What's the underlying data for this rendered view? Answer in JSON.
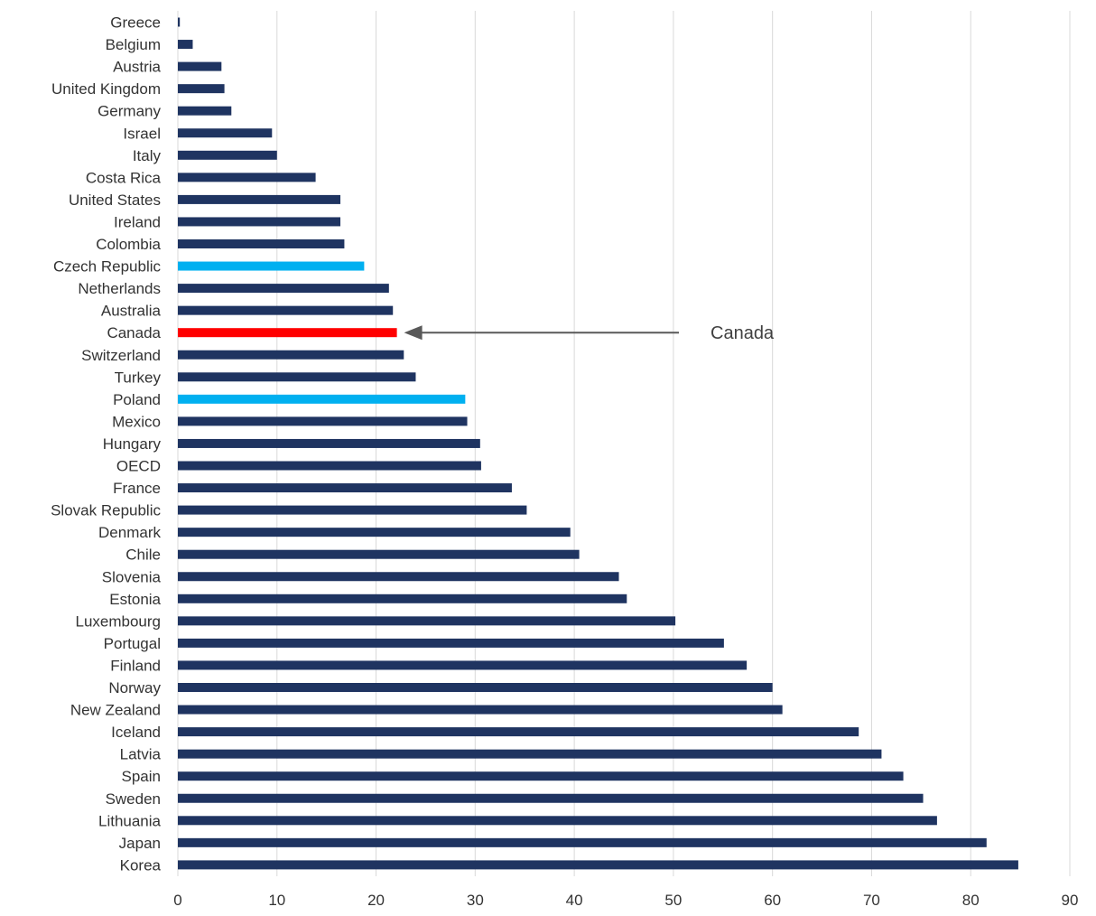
{
  "chart_data": {
    "type": "bar",
    "orientation": "horizontal",
    "title": "",
    "xlabel": "",
    "ylabel": "",
    "xlim": [
      0,
      90
    ],
    "x_ticks": [
      "0",
      "10",
      "20",
      "30",
      "40",
      "50",
      "60",
      "70",
      "80",
      "90"
    ],
    "grid": "vertical gridlines",
    "legend": "none",
    "colors": {
      "default": "#1f3461",
      "highlight": "#00b0f0",
      "canada": "#ff0000",
      "arrow": "#595959",
      "grid": "#d9d9d9"
    },
    "categories": [
      "Greece",
      "Belgium",
      "Austria",
      "United Kingdom",
      "Germany",
      "Israel",
      "Italy",
      "Costa Rica",
      "United States",
      "Ireland",
      "Colombia",
      "Czech Republic",
      "Netherlands",
      "Australia",
      "Canada",
      "Switzerland",
      "Turkey",
      "Poland",
      "Mexico",
      "Hungary",
      "OECD",
      "France",
      "Slovak Republic",
      "Denmark",
      "Chile",
      "Slovenia",
      "Estonia",
      "Luxembourg",
      "Portugal",
      "Finland",
      "Norway",
      "New Zealand",
      "Iceland",
      "Latvia",
      "Spain",
      "Sweden",
      "Lithuania",
      "Japan",
      "Korea"
    ],
    "values": [
      0.2,
      1.5,
      4.4,
      4.7,
      5.4,
      9.5,
      10.0,
      13.9,
      16.4,
      16.4,
      16.8,
      18.8,
      21.3,
      21.7,
      22.1,
      22.8,
      24.0,
      29.0,
      29.2,
      30.5,
      30.6,
      33.7,
      35.2,
      39.6,
      40.5,
      44.5,
      45.3,
      50.2,
      55.1,
      57.4,
      60.0,
      61.0,
      68.7,
      71.0,
      73.2,
      75.2,
      76.6,
      81.6,
      84.8
    ],
    "bar_colors": [
      "default",
      "default",
      "default",
      "default",
      "default",
      "default",
      "default",
      "default",
      "default",
      "default",
      "default",
      "highlight",
      "default",
      "default",
      "canada",
      "default",
      "default",
      "highlight",
      "default",
      "default",
      "default",
      "default",
      "default",
      "default",
      "default",
      "default",
      "default",
      "default",
      "default",
      "default",
      "default",
      "default",
      "default",
      "default",
      "default",
      "default",
      "default",
      "default",
      "default"
    ],
    "annotations": [
      {
        "text": "Canada",
        "target": "Canada"
      }
    ]
  }
}
